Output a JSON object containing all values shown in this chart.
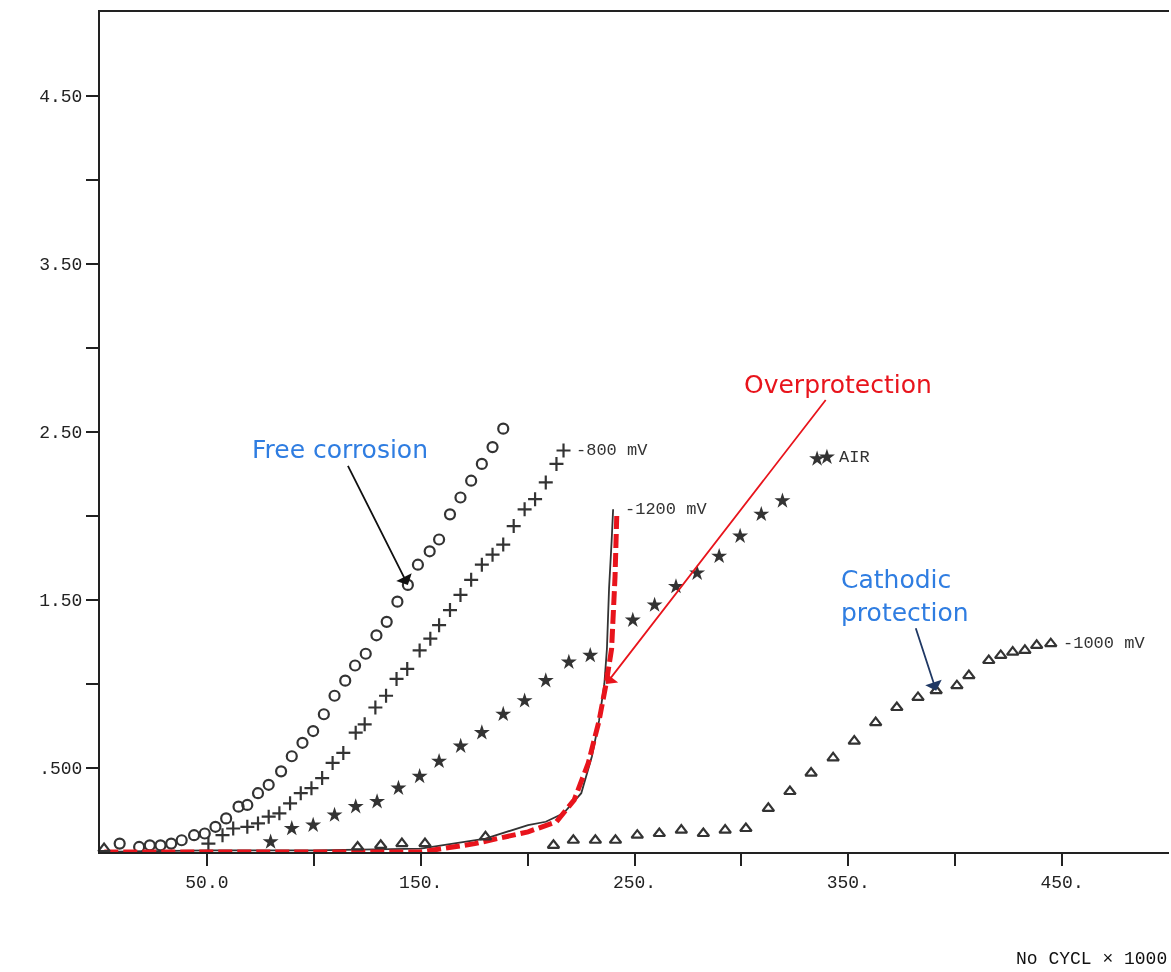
{
  "chart_data": {
    "type": "scatter",
    "xlabel": "No CYCL × 1000",
    "xlim": [
      0,
      500
    ],
    "ylim": [
      0,
      5
    ],
    "xticks": [
      {
        "value": 50,
        "label": "50.0"
      },
      {
        "value": 100,
        "label": null
      },
      {
        "value": 150,
        "label": "150."
      },
      {
        "value": 200,
        "label": null
      },
      {
        "value": 250,
        "label": "250."
      },
      {
        "value": 300,
        "label": null
      },
      {
        "value": 350,
        "label": "350."
      },
      {
        "value": 400,
        "label": null
      },
      {
        "value": 450,
        "label": "450."
      }
    ],
    "yticks": [
      {
        "value": 0.5,
        "label": ".500"
      },
      {
        "value": 1,
        "label": null
      },
      {
        "value": 1.5,
        "label": "1.50"
      },
      {
        "value": 2,
        "label": null
      },
      {
        "value": 2.5,
        "label": "2.50"
      },
      {
        "value": 3,
        "label": null
      },
      {
        "value": 3.5,
        "label": "3.50"
      },
      {
        "value": 4,
        "label": null
      },
      {
        "value": 4.5,
        "label": "4.50"
      }
    ],
    "grid": false,
    "series": [
      {
        "type": "scatter",
        "marker": "circle",
        "color": "#333333",
        "x": [
          9.2,
          18.3,
          23.3,
          28.3,
          33.3,
          38.2,
          44.0,
          49.0,
          54.0,
          59.0,
          64.8,
          68.9,
          73.9,
          78.9,
          84.7,
          89.7,
          94.7,
          99.7,
          104.7,
          109.7,
          114.7,
          119.3,
          124.3,
          129.3,
          134.1,
          139.1,
          144.0,
          148.7,
          154.2,
          158.6,
          163.7,
          168.6,
          173.6,
          178.6,
          183.6,
          188.6
        ],
        "values": [
          0.05,
          0.03,
          0.04,
          0.04,
          0.05,
          0.07,
          0.1,
          0.11,
          0.15,
          0.2,
          0.27,
          0.28,
          0.35,
          0.4,
          0.48,
          0.57,
          0.65,
          0.72,
          0.82,
          0.93,
          1.02,
          1.11,
          1.18,
          1.29,
          1.37,
          1.49,
          1.59,
          1.71,
          1.79,
          1.86,
          2.01,
          2.11,
          2.21,
          2.31,
          2.41,
          2.52
        ]
      },
      {
        "type": "scatter",
        "name": "-800 mV",
        "marker": "cross",
        "color": "#333333",
        "x": [
          50.7,
          57.3,
          62.3,
          68.9,
          73.9,
          78.9,
          83.9,
          88.9,
          93.9,
          98.9,
          103.9,
          108.8,
          113.8,
          119.6,
          123.8,
          128.8,
          133.8,
          138.7,
          143.7,
          149.5,
          154.5,
          158.6,
          163.7,
          168.6,
          173.6,
          178.6,
          183.6,
          188.6,
          193.5,
          198.6,
          203.5,
          208.5,
          213.5,
          216.8
        ],
        "values": [
          0.05,
          0.1,
          0.14,
          0.15,
          0.17,
          0.21,
          0.23,
          0.29,
          0.35,
          0.38,
          0.44,
          0.53,
          0.59,
          0.71,
          0.76,
          0.86,
          0.93,
          1.03,
          1.09,
          1.2,
          1.27,
          1.35,
          1.44,
          1.53,
          1.62,
          1.71,
          1.77,
          1.83,
          1.94,
          2.04,
          2.1,
          2.2,
          2.31,
          2.39
        ]
      },
      {
        "type": "scatter",
        "name": "AIR",
        "marker": "star",
        "color": "#333333",
        "x": [
          79.8,
          89.7,
          99.7,
          109.7,
          119.6,
          129.6,
          139.6,
          149.5,
          158.6,
          168.7,
          178.6,
          188.6,
          198.6,
          208.5,
          219.3,
          229.3,
          249.2,
          259.4,
          269.4,
          279.3,
          289.6,
          299.4,
          309.3,
          319.2,
          335.4,
          340.0
        ],
        "values": [
          0.06,
          0.14,
          0.16,
          0.22,
          0.27,
          0.3,
          0.38,
          0.45,
          0.54,
          0.63,
          0.71,
          0.82,
          0.9,
          1.02,
          1.13,
          1.17,
          1.38,
          1.47,
          1.58,
          1.66,
          1.76,
          1.88,
          2.01,
          2.09,
          2.34,
          2.35
        ]
      },
      {
        "type": "line",
        "name": "-1200 mV",
        "marker": "none",
        "line_style": "solid",
        "color": "#333333",
        "x": [
          0,
          50,
          100,
          150,
          180.3,
          200.2,
          208.5,
          216.8,
          225.1,
          230.1,
          233.4,
          235.9,
          237.1,
          238.1,
          239.3,
          240.0
        ],
        "values": [
          0,
          0.01,
          0.01,
          0.02,
          0.08,
          0.16,
          0.18,
          0.23,
          0.35,
          0.57,
          0.78,
          1.0,
          1.21,
          1.57,
          1.85,
          2.04
        ]
      },
      {
        "type": "line",
        "marker": "none",
        "line_style": "dashed",
        "color": "#e8141c",
        "x": [
          2,
          100,
          150,
          175.3,
          200.2,
          213.5,
          221.8,
          228.4,
          233.4,
          236.7,
          239.3,
          240.9,
          241.7
        ],
        "values": [
          0,
          0,
          0,
          0.05,
          0.12,
          0.18,
          0.31,
          0.53,
          0.78,
          1.0,
          1.21,
          1.64,
          2.0
        ]
      },
      {
        "type": "scatter",
        "name": "-1000 mV",
        "marker": "triangle",
        "color": "#333333",
        "x": [
          1.9,
          120.5,
          131.3,
          141.2,
          152.0,
          180.3,
          212.1,
          221.4,
          231.7,
          241.1,
          251.3,
          261.6,
          271.9,
          282.2,
          292.4,
          302.1,
          312.6,
          322.7,
          332.6,
          342.9,
          352.8,
          362.8,
          372.7,
          382.6,
          391.1,
          400.8,
          406.4,
          415.7,
          421.3,
          426.9,
          432.6,
          438.1,
          444.7
        ],
        "values": [
          0.02,
          0.03,
          0.04,
          0.05,
          0.05,
          0.09,
          0.04,
          0.07,
          0.07,
          0.07,
          0.1,
          0.11,
          0.13,
          0.11,
          0.13,
          0.14,
          0.26,
          0.36,
          0.47,
          0.56,
          0.66,
          0.77,
          0.86,
          0.92,
          0.96,
          0.99,
          1.05,
          1.14,
          1.17,
          1.19,
          1.2,
          1.23,
          1.24
        ]
      }
    ],
    "annotations": [
      {
        "text": "Free corrosion",
        "x": 144.0,
        "y": 1.59
      },
      {
        "text": "Overprotection",
        "x": 236.7,
        "y": 1.0
      },
      {
        "text": "Cathodic protection",
        "x": 391.1,
        "y": 0.96
      }
    ]
  }
}
